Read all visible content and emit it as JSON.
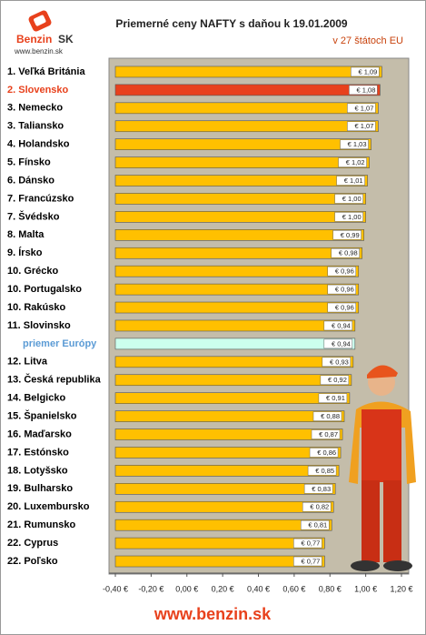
{
  "chart_data": {
    "type": "bar",
    "orientation": "horizontal",
    "title": "Priemerné ceny NAFTY s daňou k 19.01.2009",
    "subtitle": "v 27 štátoch EU",
    "logo": {
      "name": "Benzin",
      "suffix": "SK",
      "url": "www.benzin.sk"
    },
    "footer": "www.benzin.sk",
    "categories": [
      "1. Veľká Británia",
      "2. Slovensko",
      "3. Nemecko",
      "3. Taliansko",
      "4. Holandsko",
      "5. Fínsko",
      "6. Dánsko",
      "7. Francúzsko",
      "7. Švédsko",
      "8. Malta",
      "9. Írsko",
      "10. Grécko",
      "10. Portugalsko",
      "10. Rakúsko",
      "11. Slovinsko",
      "priemer Európy",
      "12. Litva",
      "13. Česká republika",
      "14. Belgicko",
      "15. Španielsko",
      "16. Maďarsko",
      "17. Estónsko",
      "18. Lotyšsko",
      "19. Bulharsko",
      "20. Luxembursko",
      "21. Rumunsko",
      "22. Cyprus",
      "22. Poľsko"
    ],
    "values": [
      1.09,
      1.08,
      1.07,
      1.07,
      1.03,
      1.02,
      1.01,
      1.0,
      1.0,
      0.99,
      0.98,
      0.96,
      0.96,
      0.96,
      0.94,
      0.94,
      0.93,
      0.92,
      0.91,
      0.88,
      0.87,
      0.86,
      0.85,
      0.83,
      0.82,
      0.81,
      0.77,
      0.77
    ],
    "value_labels": [
      "€ 1,09",
      "€ 1,08",
      "€ 1,07",
      "€ 1,07",
      "€ 1,03",
      "€ 1,02",
      "€ 1,01",
      "€ 1,00",
      "€ 1,00",
      "€ 0,99",
      "€ 0,98",
      "€ 0,96",
      "€ 0,96",
      "€ 0,96",
      "€ 0,94",
      "€ 0,94",
      "€ 0,93",
      "€ 0,92",
      "€ 0,91",
      "€ 0,88",
      "€ 0,87",
      "€ 0,86",
      "€ 0,85",
      "€ 0,83",
      "€ 0,82",
      "€ 0,81",
      "€ 0,77",
      "€ 0,77"
    ],
    "color": "#ffc000",
    "colors": [
      "#ffc000",
      "#e8411c",
      "#ffc000",
      "#ffc000",
      "#ffc000",
      "#ffc000",
      "#ffc000",
      "#ffc000",
      "#ffc000",
      "#ffc000",
      "#ffc000",
      "#ffc000",
      "#ffc000",
      "#ffc000",
      "#ffc000",
      "#ccffee",
      "#ffc000",
      "#ffc000",
      "#ffc000",
      "#ffc000",
      "#ffc000",
      "#ffc000",
      "#ffc000",
      "#ffc000",
      "#ffc000",
      "#ffc000",
      "#ffc000",
      "#ffc000"
    ],
    "label_colors": [
      "#000000",
      "#e8411c",
      "#000000",
      "#000000",
      "#000000",
      "#000000",
      "#000000",
      "#000000",
      "#000000",
      "#000000",
      "#000000",
      "#000000",
      "#000000",
      "#000000",
      "#000000",
      "#5b9bd5",
      "#000000",
      "#000000",
      "#000000",
      "#000000",
      "#000000",
      "#000000",
      "#000000",
      "#000000",
      "#000000",
      "#000000",
      "#000000",
      "#000000"
    ],
    "xlim": [
      -0.4,
      1.2
    ],
    "xticks": [
      {
        "value": -0.4,
        "label": "-0,40 €"
      },
      {
        "value": -0.2,
        "label": "-0,20 €"
      },
      {
        "value": 0,
        "label": "0,00 €"
      },
      {
        "value": 0.2,
        "label": "0,20 €"
      },
      {
        "value": 0.4,
        "label": "0,40 €"
      },
      {
        "value": 0.6,
        "label": "0,60 €"
      },
      {
        "value": 0.8,
        "label": "0,80 €"
      },
      {
        "value": 1.0,
        "label": "1,00 €"
      },
      {
        "value": 1.2,
        "label": "1,20 €"
      }
    ]
  }
}
